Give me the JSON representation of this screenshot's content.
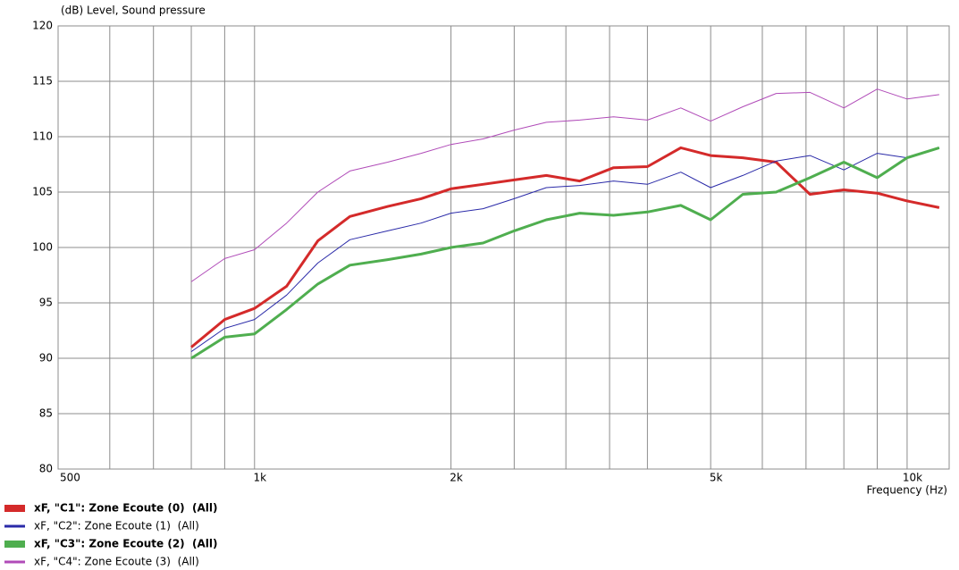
{
  "chart_data": {
    "type": "line",
    "y_label": "(dB)  Level, Sound pressure",
    "x_label": "Frequency  (Hz)",
    "log_x": true,
    "grid": true,
    "x": [
      800,
      900,
      1000,
      1120,
      1250,
      1400,
      1600,
      1800,
      2000,
      2240,
      2500,
      2800,
      3150,
      3550,
      4000,
      4500,
      5000,
      5600,
      6300,
      7100,
      8000,
      9000,
      10000,
      11200
    ],
    "xlim": [
      500,
      11600
    ],
    "xticks": [
      500,
      {
        "value": 1000,
        "label": "1k"
      },
      {
        "value": 2000,
        "label": "2k"
      },
      {
        "value": 5000,
        "label": "5k"
      },
      {
        "value": 10000,
        "label": "10k"
      }
    ],
    "xgrid_minor": [
      600,
      700,
      800,
      900,
      2500,
      3000,
      3500,
      4000,
      6000,
      7000,
      8000,
      9000
    ],
    "ylim": [
      80,
      120
    ],
    "yticks": [
      80,
      85,
      90,
      95,
      100,
      105,
      110,
      115,
      120
    ],
    "series": [
      {
        "name": "xF, \"C1\": Zone Ecoute (0)  (All)",
        "color": "#d42a2a",
        "width": 3,
        "values": [
          91.0,
          93.5,
          94.5,
          96.5,
          100.6,
          102.8,
          103.7,
          104.4,
          105.3,
          105.7,
          106.1,
          106.5,
          106.0,
          107.2,
          107.3,
          109.0,
          108.3,
          108.1,
          107.7,
          104.8,
          105.2,
          104.9,
          104.2,
          103.6
        ]
      },
      {
        "name": "xF, \"C2\": Zone Ecoute (1)  (All)",
        "color": "#2a2aa8",
        "width": 1,
        "values": [
          90.6,
          92.7,
          93.5,
          95.7,
          98.6,
          100.7,
          101.5,
          102.2,
          103.1,
          103.5,
          104.4,
          105.4,
          105.6,
          106.0,
          105.7,
          106.8,
          105.4,
          106.5,
          107.8,
          108.3,
          107.0,
          108.5,
          108.1,
          109.0
        ]
      },
      {
        "name": "xF, \"C3\": Zone Ecoute (2)  (All)",
        "color": "#4fae4f",
        "width": 3,
        "values": [
          90.0,
          91.9,
          92.2,
          94.4,
          96.7,
          98.4,
          98.9,
          99.4,
          100.0,
          100.4,
          101.5,
          102.5,
          103.1,
          102.9,
          103.2,
          103.8,
          102.5,
          104.8,
          105.0,
          106.3,
          107.7,
          106.3,
          108.1,
          109.0
        ]
      },
      {
        "name": "xF, \"C4\": Zone Ecoute (3)  (All)",
        "color": "#b04bb8",
        "width": 1,
        "values": [
          96.9,
          99.0,
          99.8,
          102.2,
          105.0,
          106.9,
          107.7,
          108.5,
          109.3,
          109.8,
          110.6,
          111.3,
          111.5,
          111.8,
          111.5,
          112.6,
          111.4,
          112.7,
          113.9,
          114.0,
          112.6,
          114.3,
          113.4,
          113.8
        ]
      }
    ]
  }
}
